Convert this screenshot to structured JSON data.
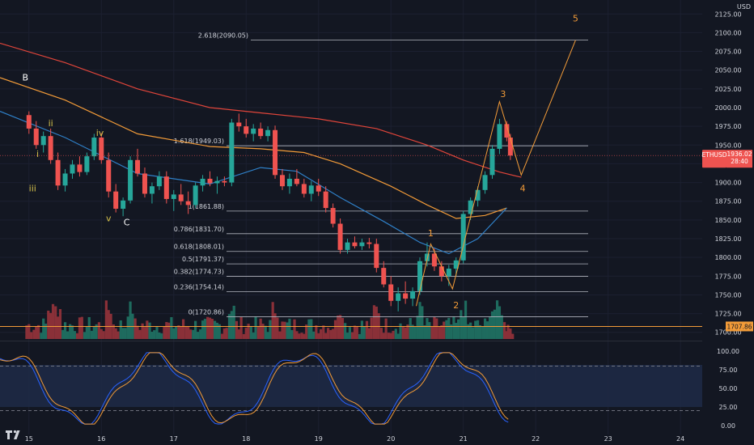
{
  "currency": "USD",
  "symbol": "ETHUSD",
  "price_tag": "1936.02",
  "countdown": "28:40",
  "low_tag": "1707.86",
  "chart_data": {
    "type": "candlestick",
    "price_axis": {
      "ticks": [
        2125,
        2100,
        2075,
        2050,
        2025,
        2000,
        1975,
        1950,
        1925,
        1900,
        1875,
        1850,
        1825,
        1800,
        1775,
        1750,
        1725,
        1700
      ],
      "tick_labels": [
        "2125.00",
        "2100.00",
        "2075.00",
        "2050.00",
        "2025.00",
        "2000.00",
        "1975.00",
        "1950.00",
        "1925.00",
        "1900.00",
        "1875.00",
        "1850.00",
        "1825.00",
        "1800.00",
        "1775.00",
        "1750.00",
        "1725.00",
        "1700.00"
      ],
      "range": [
        1690,
        2135
      ]
    },
    "oscillator_axis": {
      "ticks": [
        100,
        75,
        50,
        25,
        0
      ],
      "tick_labels": [
        "100.00",
        "75.00",
        "50.00",
        "25.00",
        "0.00"
      ],
      "range": [
        -12,
        112
      ],
      "bands": [
        80,
        20
      ]
    },
    "time_axis": {
      "labels": [
        "15",
        "16",
        "17",
        "18",
        "19",
        "20",
        "21",
        "22",
        "23",
        "24"
      ],
      "range": [
        14.6,
        24.3
      ]
    },
    "fib_levels": [
      {
        "label": "2.618(2090.05)",
        "value": 2090.05
      },
      {
        "label": "1.618(1949.03)",
        "value": 1949.03
      },
      {
        "label": "1(1861.88)",
        "value": 1861.88
      },
      {
        "label": "0.786(1831.70)",
        "value": 1831.7
      },
      {
        "label": "0.618(1808.01)",
        "value": 1808.01
      },
      {
        "label": "0.5(1791.37)",
        "value": 1791.37
      },
      {
        "label": "0.382(1774.73)",
        "value": 1774.73
      },
      {
        "label": "0.236(1754.14)",
        "value": 1754.14
      },
      {
        "label": "0(1720.86)",
        "value": 1720.86
      }
    ],
    "elliott_labels_white": [
      {
        "label": "B",
        "t": 14.95,
        "p": 2036
      },
      {
        "label": "C",
        "t": 16.35,
        "p": 1843
      }
    ],
    "elliott_labels_yellow": [
      {
        "label": "ii",
        "t": 15.3,
        "p": 1975
      },
      {
        "label": "i",
        "t": 15.12,
        "p": 1934
      },
      {
        "label": "iv",
        "t": 15.98,
        "p": 1962
      },
      {
        "label": "iii",
        "t": 15.05,
        "p": 1888
      },
      {
        "label": "v",
        "t": 16.1,
        "p": 1848
      }
    ],
    "elliott_labels_orange": [
      {
        "label": "1",
        "t": 20.55,
        "p": 1828
      },
      {
        "label": "2",
        "t": 20.9,
        "p": 1732
      },
      {
        "label": "3",
        "t": 21.55,
        "p": 2014
      },
      {
        "label": "4",
        "t": 21.82,
        "p": 1888
      },
      {
        "label": "5",
        "t": 22.55,
        "p": 2115
      }
    ],
    "wave_projection": [
      [
        20.35,
        1735
      ],
      [
        20.55,
        1818
      ],
      [
        20.85,
        1758
      ],
      [
        21.5,
        2008
      ],
      [
        21.8,
        1910
      ],
      [
        22.55,
        2090
      ]
    ],
    "moving_averages": [
      {
        "color": "#e0453a",
        "points": [
          [
            14.6,
            2086
          ],
          [
            15.5,
            2060
          ],
          [
            16.5,
            2025
          ],
          [
            17.5,
            2000
          ],
          [
            18.2,
            1993
          ],
          [
            19.0,
            1985
          ],
          [
            19.8,
            1972
          ],
          [
            20.5,
            1950
          ],
          [
            21.0,
            1930
          ],
          [
            21.5,
            1914
          ],
          [
            21.8,
            1907
          ]
        ]
      },
      {
        "color": "#f29b38",
        "points": [
          [
            14.6,
            2040
          ],
          [
            15.5,
            2010
          ],
          [
            16.5,
            1965
          ],
          [
            17.5,
            1948
          ],
          [
            18.2,
            1945
          ],
          [
            18.8,
            1940
          ],
          [
            19.3,
            1925
          ],
          [
            20.0,
            1895
          ],
          [
            20.5,
            1870
          ],
          [
            20.9,
            1852
          ],
          [
            21.3,
            1856
          ],
          [
            21.6,
            1866
          ]
        ]
      },
      {
        "color": "#2f80c8",
        "points": [
          [
            14.6,
            1995
          ],
          [
            15.5,
            1960
          ],
          [
            16.5,
            1912
          ],
          [
            17.5,
            1898
          ],
          [
            18.2,
            1920
          ],
          [
            18.7,
            1915
          ],
          [
            19.3,
            1880
          ],
          [
            19.9,
            1848
          ],
          [
            20.4,
            1820
          ],
          [
            20.8,
            1805
          ],
          [
            21.2,
            1825
          ],
          [
            21.6,
            1866
          ]
        ]
      }
    ],
    "candles_ohlc": [
      [
        15,
        1990,
        1995,
        1965,
        1972
      ],
      [
        15.1,
        1972,
        1982,
        1945,
        1950
      ],
      [
        15.2,
        1950,
        1968,
        1940,
        1962
      ],
      [
        15.3,
        1962,
        1972,
        1925,
        1930
      ],
      [
        15.4,
        1930,
        1940,
        1890,
        1896
      ],
      [
        15.5,
        1896,
        1918,
        1888,
        1912
      ],
      [
        15.6,
        1912,
        1930,
        1905,
        1924
      ],
      [
        15.7,
        1924,
        1935,
        1908,
        1914
      ],
      [
        15.8,
        1914,
        1940,
        1910,
        1935
      ],
      [
        15.9,
        1935,
        1965,
        1930,
        1960
      ],
      [
        16,
        1960,
        1966,
        1925,
        1930
      ],
      [
        16.1,
        1930,
        1940,
        1880,
        1888
      ],
      [
        16.2,
        1888,
        1898,
        1860,
        1865
      ],
      [
        16.3,
        1865,
        1880,
        1855,
        1876
      ],
      [
        16.4,
        1876,
        1935,
        1872,
        1930
      ],
      [
        16.5,
        1930,
        1945,
        1908,
        1912
      ],
      [
        16.6,
        1912,
        1920,
        1880,
        1885
      ],
      [
        16.7,
        1885,
        1900,
        1872,
        1895
      ],
      [
        16.8,
        1895,
        1915,
        1890,
        1908
      ],
      [
        16.9,
        1908,
        1915,
        1872,
        1878
      ],
      [
        17,
        1878,
        1890,
        1862,
        1884
      ],
      [
        17.1,
        1884,
        1898,
        1870,
        1875
      ],
      [
        17.2,
        1875,
        1888,
        1858,
        1870
      ],
      [
        17.3,
        1870,
        1900,
        1866,
        1896
      ],
      [
        17.4,
        1896,
        1910,
        1888,
        1905
      ],
      [
        17.5,
        1905,
        1915,
        1895,
        1899
      ],
      [
        17.6,
        1899,
        1908,
        1885,
        1902
      ],
      [
        17.7,
        1902,
        1908,
        1895,
        1900
      ],
      [
        17.8,
        1900,
        1985,
        1895,
        1980
      ],
      [
        17.9,
        1980,
        1992,
        1968,
        1975
      ],
      [
        18,
        1975,
        1985,
        1960,
        1965
      ],
      [
        18.1,
        1965,
        1978,
        1955,
        1972
      ],
      [
        18.2,
        1972,
        1980,
        1958,
        1962
      ],
      [
        18.3,
        1962,
        1975,
        1955,
        1970
      ],
      [
        18.4,
        1970,
        1976,
        1905,
        1910
      ],
      [
        18.5,
        1910,
        1918,
        1890,
        1895
      ],
      [
        18.6,
        1895,
        1912,
        1885,
        1905
      ],
      [
        18.7,
        1905,
        1918,
        1895,
        1898
      ],
      [
        18.8,
        1898,
        1905,
        1880,
        1885
      ],
      [
        18.9,
        1885,
        1902,
        1875,
        1896
      ],
      [
        19,
        1896,
        1905,
        1882,
        1888
      ],
      [
        19.1,
        1888,
        1895,
        1860,
        1866
      ],
      [
        19.2,
        1866,
        1872,
        1840,
        1845
      ],
      [
        19.3,
        1845,
        1852,
        1805,
        1810
      ],
      [
        19.4,
        1810,
        1825,
        1805,
        1820
      ],
      [
        19.5,
        1820,
        1828,
        1812,
        1815
      ],
      [
        19.6,
        1815,
        1825,
        1810,
        1820
      ],
      [
        19.7,
        1820,
        1826,
        1812,
        1818
      ],
      [
        19.8,
        1818,
        1825,
        1780,
        1786
      ],
      [
        19.9,
        1786,
        1795,
        1760,
        1764
      ],
      [
        20,
        1764,
        1775,
        1735,
        1742
      ],
      [
        20.1,
        1742,
        1760,
        1728,
        1752
      ],
      [
        20.2,
        1752,
        1768,
        1738,
        1745
      ],
      [
        20.3,
        1745,
        1760,
        1735,
        1755
      ],
      [
        20.4,
        1755,
        1800,
        1750,
        1795
      ],
      [
        20.5,
        1795,
        1820,
        1788,
        1805
      ],
      [
        20.6,
        1805,
        1812,
        1782,
        1788
      ],
      [
        20.7,
        1788,
        1795,
        1768,
        1775
      ],
      [
        20.8,
        1775,
        1790,
        1762,
        1785
      ],
      [
        20.9,
        1785,
        1800,
        1775,
        1796
      ],
      [
        21,
        1796,
        1862,
        1792,
        1858
      ],
      [
        21.1,
        1858,
        1880,
        1850,
        1876
      ],
      [
        21.2,
        1876,
        1895,
        1868,
        1890
      ],
      [
        21.3,
        1890,
        1915,
        1885,
        1910
      ],
      [
        21.4,
        1910,
        1950,
        1905,
        1945
      ],
      [
        21.5,
        1945,
        1985,
        1938,
        1978
      ],
      [
        21.6,
        1978,
        1982,
        1955,
        1960
      ],
      [
        21.65,
        1960,
        1965,
        1930,
        1936
      ]
    ]
  }
}
